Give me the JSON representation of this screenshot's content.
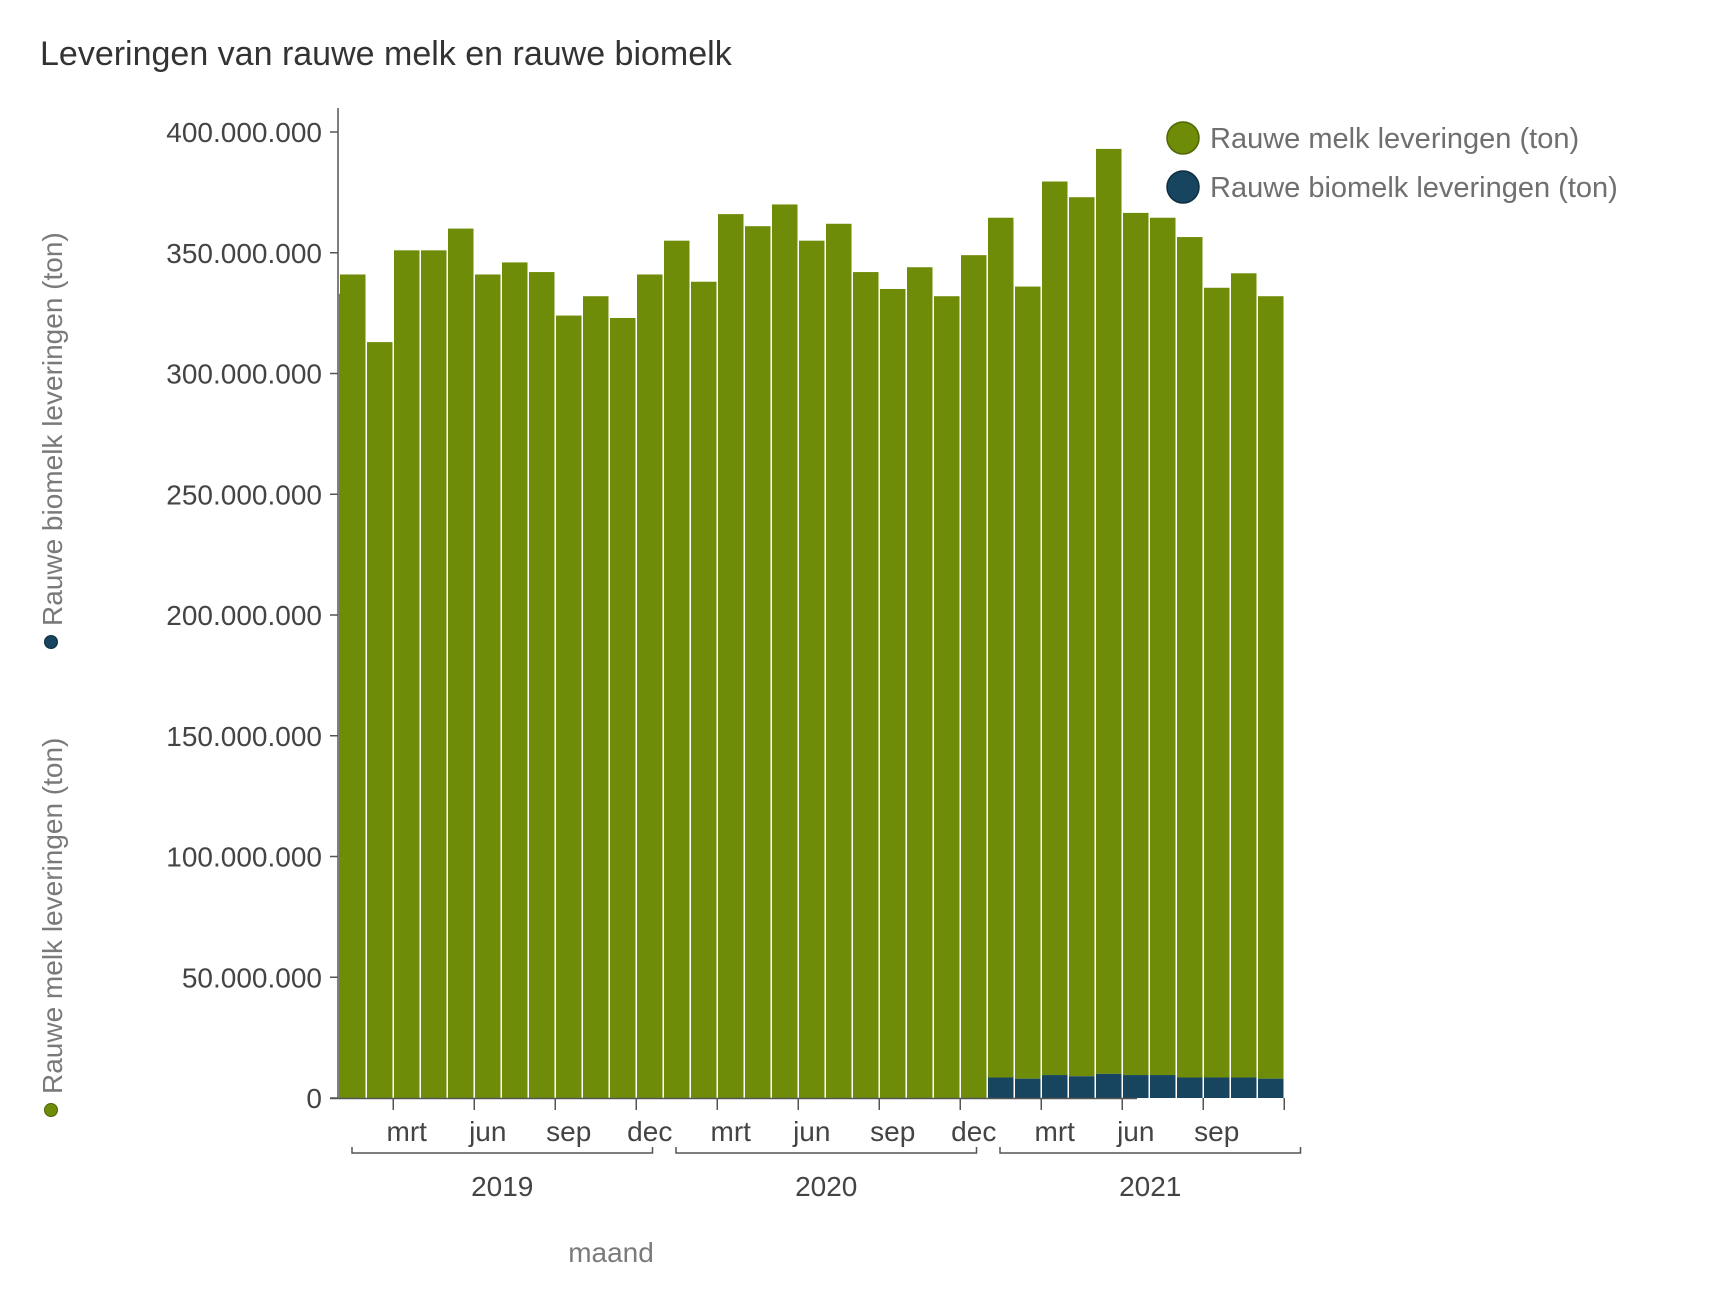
{
  "chart_data": {
    "type": "bar",
    "stacked": true,
    "title": "Leveringen van rauwe melk en rauwe biomelk",
    "xlabel": "maand",
    "ylabel_parts": [
      "Rauwe melk leveringen (ton)",
      "Rauwe biomelk leveringen (ton)"
    ],
    "ylim": [
      0,
      400000000
    ],
    "yticks": [
      0,
      50000000,
      100000000,
      150000000,
      200000000,
      250000000,
      300000000,
      350000000,
      400000000
    ],
    "ytick_labels": [
      "0",
      "50.000.000",
      "100.000.000",
      "150.000.000",
      "200.000.000",
      "250.000.000",
      "300.000.000",
      "350.000.000",
      "400.000.000"
    ],
    "month_tick_labels": [
      {
        "index": 2,
        "label": "mrt"
      },
      {
        "index": 5,
        "label": "jun"
      },
      {
        "index": 8,
        "label": "sep"
      },
      {
        "index": 11,
        "label": "dec"
      },
      {
        "index": 14,
        "label": "mrt"
      },
      {
        "index": 17,
        "label": "jun"
      },
      {
        "index": 20,
        "label": "sep"
      },
      {
        "index": 23,
        "label": "dec"
      },
      {
        "index": 26,
        "label": "mrt"
      },
      {
        "index": 29,
        "label": "jun"
      },
      {
        "index": 32,
        "label": "sep"
      }
    ],
    "year_groups": [
      {
        "label": "2019",
        "start": 0,
        "end": 11
      },
      {
        "label": "2020",
        "start": 12,
        "end": 23
      },
      {
        "label": "2021",
        "start": 24,
        "end": 35
      }
    ],
    "months": 36,
    "series": [
      {
        "name": "Rauwe melk leveringen (ton)",
        "color": "#6e8c08",
        "values": [
          341000000,
          313000000,
          351000000,
          351000000,
          360000000,
          341000000,
          346000000,
          342000000,
          324000000,
          332000000,
          323000000,
          341000000,
          355000000,
          338000000,
          366000000,
          361000000,
          370000000,
          355000000,
          362000000,
          342000000,
          335000000,
          344000000,
          332000000,
          349000000,
          356000000,
          328000000,
          370000000,
          364000000,
          383000000,
          357000000,
          355000000,
          348000000,
          327000000,
          333000000,
          324000000,
          0
        ]
      },
      {
        "name": "Rauwe biomelk leveringen (ton)",
        "color": "#17445e",
        "values": [
          0,
          0,
          0,
          0,
          0,
          0,
          0,
          0,
          0,
          0,
          0,
          0,
          0,
          0,
          0,
          0,
          0,
          0,
          0,
          0,
          0,
          0,
          0,
          0,
          8500000,
          8000000,
          9500000,
          9000000,
          10000000,
          9500000,
          9500000,
          8500000,
          8500000,
          8500000,
          8000000,
          0
        ]
      }
    ],
    "legend_position": "top-right",
    "grid": false
  }
}
